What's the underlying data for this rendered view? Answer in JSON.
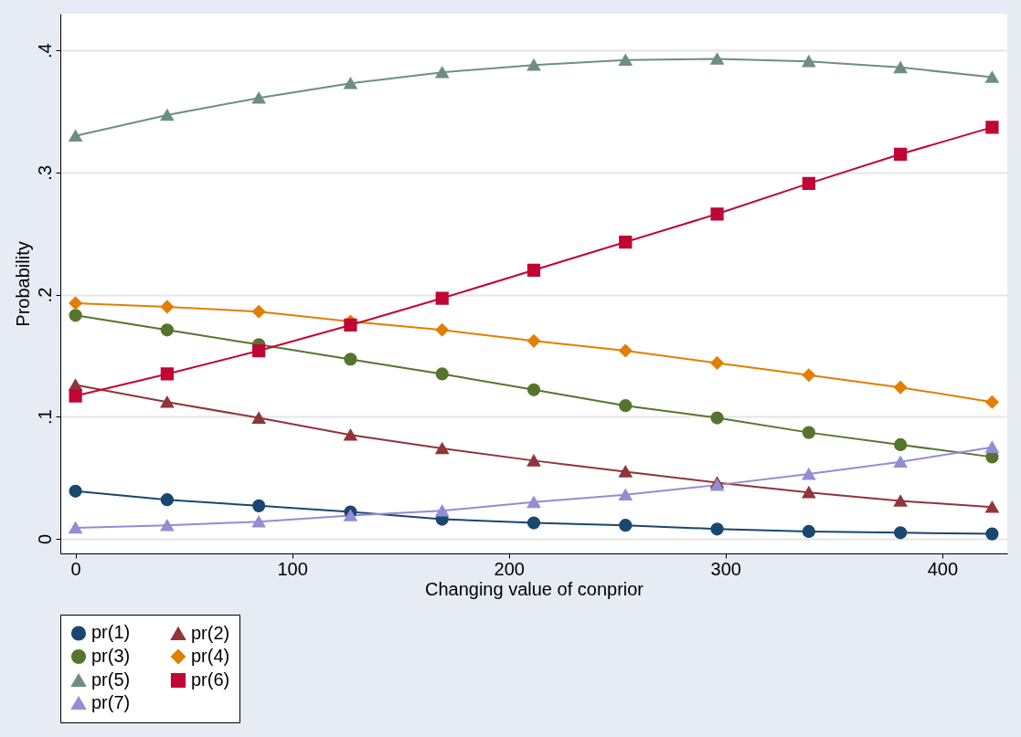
{
  "chart_data": {
    "type": "line",
    "xlabel": "Changing value of conprior",
    "ylabel": "Probability",
    "x": [
      0,
      42.3,
      84.6,
      126.9,
      169.2,
      211.5,
      253.8,
      296.1,
      338.4,
      380.7,
      423
    ],
    "xlim": [
      -7,
      430
    ],
    "xticks": [
      0,
      100,
      200,
      300,
      400
    ],
    "ylim": [
      -0.012,
      0.43
    ],
    "yticks": [
      {
        "value": 0,
        "label": "0"
      },
      {
        "value": 0.1,
        "label": ".1"
      },
      {
        "value": 0.2,
        "label": ".2"
      },
      {
        "value": 0.3,
        "label": ".3"
      },
      {
        "value": 0.4,
        "label": ".4"
      }
    ],
    "grid": "y",
    "legend": "bottom",
    "series": [
      {
        "name": "pr(1)",
        "color": "#1a476f",
        "marker": "circle",
        "values": [
          0.039,
          0.032,
          0.027,
          0.022,
          0.016,
          0.013,
          0.011,
          0.008,
          0.006,
          0.005,
          0.004
        ]
      },
      {
        "name": "pr(2)",
        "color": "#90353b",
        "marker": "triangle",
        "values": [
          0.126,
          0.112,
          0.099,
          0.085,
          0.074,
          0.064,
          0.055,
          0.046,
          0.038,
          0.031,
          0.026
        ]
      },
      {
        "name": "pr(3)",
        "color": "#55752f",
        "marker": "circle",
        "values": [
          0.183,
          0.171,
          0.159,
          0.147,
          0.135,
          0.122,
          0.109,
          0.099,
          0.087,
          0.077,
          0.067
        ]
      },
      {
        "name": "pr(4)",
        "color": "#e37e00",
        "marker": "diamond",
        "values": [
          0.193,
          0.19,
          0.186,
          0.178,
          0.171,
          0.162,
          0.154,
          0.144,
          0.134,
          0.124,
          0.112
        ]
      },
      {
        "name": "pr(5)",
        "color": "#6e8e84",
        "marker": "triangle",
        "values": [
          0.33,
          0.347,
          0.361,
          0.373,
          0.382,
          0.388,
          0.392,
          0.393,
          0.391,
          0.386,
          0.378
        ]
      },
      {
        "name": "pr(6)",
        "color": "#c10534",
        "marker": "square",
        "values": [
          0.117,
          0.135,
          0.154,
          0.175,
          0.197,
          0.22,
          0.243,
          0.266,
          0.291,
          0.315,
          0.337
        ]
      },
      {
        "name": "pr(7)",
        "color": "#938dd2",
        "marker": "triangle",
        "values": [
          0.009,
          0.011,
          0.014,
          0.019,
          0.023,
          0.03,
          0.036,
          0.044,
          0.053,
          0.063,
          0.075
        ]
      }
    ]
  }
}
